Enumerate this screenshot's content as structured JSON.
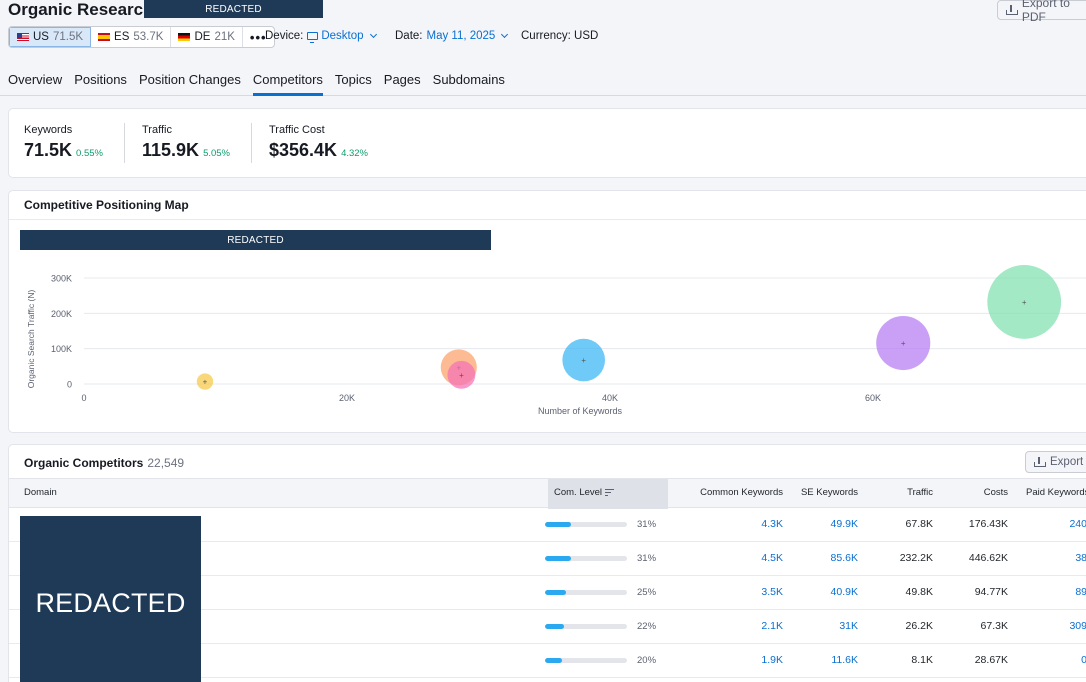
{
  "header": {
    "title": "Organic Research:",
    "redacted_label": "REDACTED",
    "export_pdf_label": "Export to PDF",
    "databases": [
      {
        "code": "US",
        "count": "71.5K",
        "flag": "flag-us"
      },
      {
        "code": "ES",
        "count": "53.7K",
        "flag": "flag-es"
      },
      {
        "code": "DE",
        "count": "21K",
        "flag": "flag-de"
      }
    ],
    "more_label": "•••",
    "device_label": "Device:",
    "device_value": "Desktop",
    "date_label": "Date:",
    "date_value": "May 11, 2025",
    "currency_label": "Currency: USD"
  },
  "tabs": [
    "Overview",
    "Positions",
    "Position Changes",
    "Competitors",
    "Topics",
    "Pages",
    "Subdomains"
  ],
  "active_tab": "Competitors",
  "metrics": [
    {
      "label": "Keywords",
      "value": "71.5K",
      "change": "0.55%"
    },
    {
      "label": "Traffic",
      "value": "115.9K",
      "change": "5.05%"
    },
    {
      "label": "Traffic Cost",
      "value": "$356.4K",
      "change": "4.32%"
    }
  ],
  "positioning_map": {
    "title": "Competitive Positioning Map",
    "redacted_label": "REDACTED",
    "chart_data": {
      "type": "scatter",
      "xlabel": "Number of Keywords",
      "ylabel": "Organic Search Traffic (N)",
      "x_ticks": [
        "0",
        "20K",
        "40K",
        "60K"
      ],
      "y_ticks": [
        "0",
        "100K",
        "200K",
        "300K"
      ],
      "xlim": [
        0,
        76000
      ],
      "ylim": [
        0,
        300000
      ],
      "grid": true,
      "points": [
        {
          "x": 9200,
          "y": 7000,
          "size": 0.1,
          "color": "#f7c948"
        },
        {
          "x": 28500,
          "y": 47000,
          "size": 0.22,
          "color": "#fba168"
        },
        {
          "x": 28700,
          "y": 26000,
          "size": 0.17,
          "color": "#f472b6"
        },
        {
          "x": 38000,
          "y": 67800,
          "size": 0.26,
          "color": "#38b6f5"
        },
        {
          "x": 62300,
          "y": 115900,
          "size": 0.33,
          "color": "#b57cf2"
        },
        {
          "x": 71500,
          "y": 232200,
          "size": 0.45,
          "color": "#7fe0b0"
        }
      ]
    }
  },
  "competitors": {
    "title": "Organic Competitors",
    "count": "22,549",
    "export_label": "Export",
    "redacted_label": "REDACTED",
    "columns": [
      "Domain",
      "Com. Level",
      "Common Keywords",
      "SE Keywords",
      "Traffic",
      "Costs",
      "Paid Keywords"
    ],
    "rows": [
      {
        "level": 0.31,
        "pct": "31%",
        "common": "4.3K",
        "se": "49.9K",
        "traffic": "67.8K",
        "costs": "176.43K",
        "paid": "240"
      },
      {
        "level": 0.31,
        "pct": "31%",
        "common": "4.5K",
        "se": "85.6K",
        "traffic": "232.2K",
        "costs": "446.62K",
        "paid": "38"
      },
      {
        "level": 0.25,
        "pct": "25%",
        "common": "3.5K",
        "se": "40.9K",
        "traffic": "49.8K",
        "costs": "94.77K",
        "paid": "89"
      },
      {
        "level": 0.22,
        "pct": "22%",
        "common": "2.1K",
        "se": "31K",
        "traffic": "26.2K",
        "costs": "67.3K",
        "paid": "309"
      },
      {
        "level": 0.2,
        "pct": "20%",
        "common": "1.9K",
        "se": "11.6K",
        "traffic": "8.1K",
        "costs": "28.67K",
        "paid": "0"
      }
    ]
  }
}
